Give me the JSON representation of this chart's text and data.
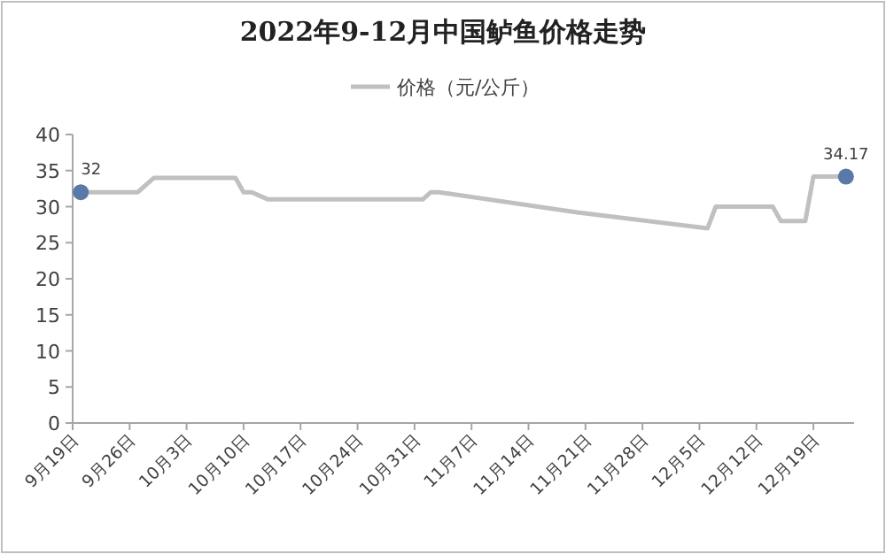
{
  "chart_data": {
    "type": "line",
    "title": "2022年9-12月中国鲈鱼价格走势",
    "x": [
      "--09-20",
      "--09-27",
      "--09-29",
      "--10-09",
      "--10-10",
      "--10-11",
      "--10-13",
      "--11-01",
      "--11-02",
      "--11-03",
      "--11-20",
      "--12-06",
      "--12-07",
      "--12-14",
      "--12-15",
      "--12-18",
      "--12-19",
      "--12-23"
    ],
    "series": [
      {
        "name": "价格（元/公斤）",
        "color": "#c0c0c0",
        "marker": "none",
        "values": [
          32,
          32,
          34,
          34,
          32,
          32,
          31,
          31,
          32,
          32,
          29.2,
          27,
          30,
          30,
          28,
          28,
          34.17,
          34.17
        ]
      },
      {
        "type": "scatter",
        "color": "#5a78a8",
        "marker": "circle",
        "x": [
          "--09-20",
          "--12-23"
        ],
        "values": [
          32,
          34.17
        ],
        "value_labels": [
          "32",
          "34.17"
        ]
      }
    ],
    "line_style": "solid",
    "legend": "top",
    "grid": false,
    "xlim": [
      "--09-19",
      "--12-24"
    ],
    "xticks": [
      {
        "value": "--09-19",
        "label": "9月19日"
      },
      {
        "value": "--09-26",
        "label": "9月26日"
      },
      {
        "value": "--10-03",
        "label": "10月3日"
      },
      {
        "value": "--10-10",
        "label": "10月10日"
      },
      {
        "value": "--10-17",
        "label": "10月17日"
      },
      {
        "value": "--10-24",
        "label": "10月24日"
      },
      {
        "value": "--10-31",
        "label": "10月31日"
      },
      {
        "value": "--11-07",
        "label": "11月7日"
      },
      {
        "value": "--11-14",
        "label": "11月14日"
      },
      {
        "value": "--11-21",
        "label": "11月21日"
      },
      {
        "value": "--11-28",
        "label": "11月28日"
      },
      {
        "value": "--12-05",
        "label": "12月5日"
      },
      {
        "value": "--12-12",
        "label": "12月12日"
      },
      {
        "value": "--12-19",
        "label": "12月19日"
      }
    ],
    "ylim": [
      0,
      40
    ],
    "yticks": [
      0,
      5,
      10,
      15,
      20,
      25,
      30,
      35,
      40
    ]
  }
}
